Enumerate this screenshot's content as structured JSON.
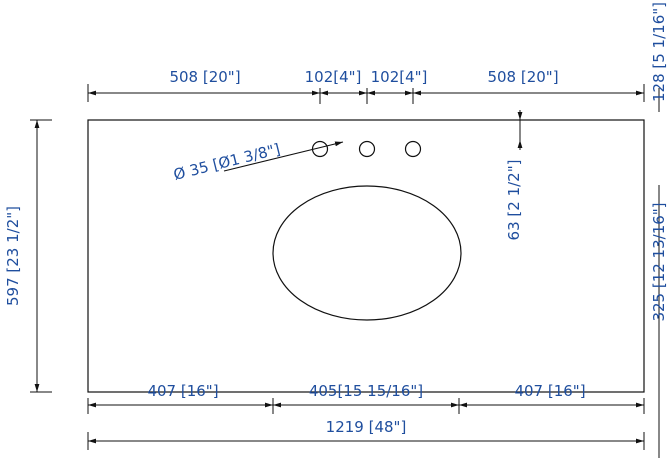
{
  "dimensions": {
    "top_left": "508 [20\"]",
    "hole_spacing_left": "102[4\"]",
    "hole_spacing_right": "102[4\"]",
    "top_right": "508 [20\"]",
    "right_top": "128 [5 1/16\"]",
    "right_middle": "325 [12 13/16\"]",
    "left_height": "597 [23 1/2\"]",
    "hole_diameter": "Ø 35 [Ø1 3/8\"]",
    "hole_to_edge": "63 [2 1/2\"]",
    "bottom_left": "407 [16\"]",
    "bottom_middle": "405[15 15/16\"]",
    "bottom_right": "407 [16\"]",
    "overall_width": "1219 [48\"]"
  },
  "colors": {
    "dimension_text": "#1f4e9e",
    "linework": "#111111"
  }
}
